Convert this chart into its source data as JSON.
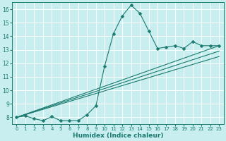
{
  "xlabel": "Humidex (Indice chaleur)",
  "bg_color": "#c8eef0",
  "line_color": "#1a7a6e",
  "grid_color": "#ffffff",
  "xlim": [
    -0.5,
    23.5
  ],
  "ylim": [
    7.5,
    16.5
  ],
  "xticks": [
    0,
    1,
    2,
    3,
    4,
    5,
    6,
    7,
    8,
    9,
    10,
    11,
    12,
    13,
    14,
    15,
    16,
    17,
    18,
    19,
    20,
    21,
    22,
    23
  ],
  "yticks": [
    8,
    9,
    10,
    11,
    12,
    13,
    14,
    15,
    16
  ],
  "series": [
    {
      "x": [
        0,
        1,
        2,
        3,
        4,
        5,
        6,
        7,
        8,
        9,
        10,
        11,
        12,
        13,
        14,
        15,
        16,
        17,
        18,
        19,
        20,
        21,
        22,
        23
      ],
      "y": [
        8.0,
        8.1,
        7.9,
        7.75,
        8.05,
        7.75,
        7.75,
        7.75,
        8.2,
        8.85,
        11.8,
        14.2,
        15.5,
        16.3,
        15.7,
        14.4,
        13.1,
        13.2,
        13.3,
        13.1,
        13.6,
        13.3,
        13.3,
        13.3
      ],
      "has_markers": true,
      "marker": "D",
      "markersize": 2.5
    },
    {
      "x": [
        0,
        23
      ],
      "y": [
        8.0,
        13.3
      ],
      "has_markers": false
    },
    {
      "x": [
        0,
        23
      ],
      "y": [
        8.0,
        12.9
      ],
      "has_markers": false
    },
    {
      "x": [
        0,
        23
      ],
      "y": [
        8.0,
        12.5
      ],
      "has_markers": false
    }
  ]
}
